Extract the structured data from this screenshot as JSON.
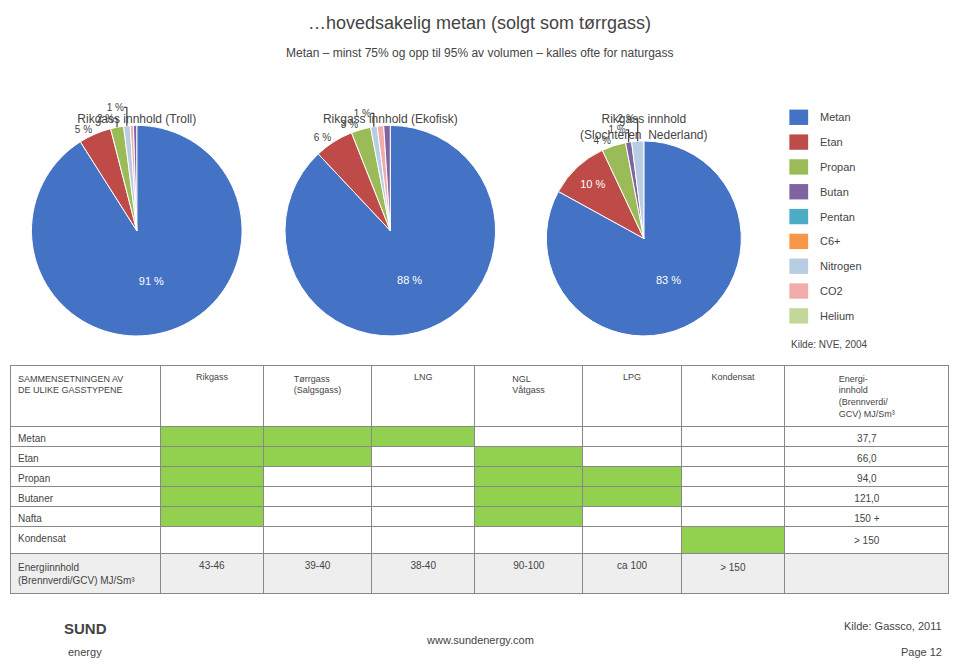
{
  "title": "…hovedsakelig metan (solgt som tørrgass)",
  "subtitle": "Metan – minst 75% og opp til 95% av volumen – kalles ofte for naturgass",
  "legend_entries": [
    {
      "name": "Metan",
      "color": "#4472C4"
    },
    {
      "name": "Etan",
      "color": "#BE4B48"
    },
    {
      "name": "Propan",
      "color": "#9BBB59"
    },
    {
      "name": "Butan",
      "color": "#8064A2"
    },
    {
      "name": "Pentan",
      "color": "#4BACC6"
    },
    {
      "name": "C6+",
      "color": "#F79646"
    },
    {
      "name": "Nitrogen",
      "color": "#B8CCE4"
    },
    {
      "name": "CO2",
      "color": "#F2ABAB"
    },
    {
      "name": "Helium",
      "color": "#C4D79B"
    }
  ],
  "chart_data": [
    {
      "type": "pie",
      "title": "Rikgass innhold (Troll)",
      "categories": [
        "Metan",
        "Etan",
        "Propan",
        "Nitrogen",
        "CO2",
        "Butan"
      ],
      "values": [
        91,
        5,
        2,
        1,
        0.5,
        0.5
      ],
      "value_labels": [
        "91 %",
        "5 %",
        "2 %",
        "1 %",
        null,
        null
      ],
      "colors": [
        "#4472C4",
        "#BE4B48",
        "#9BBB59",
        "#B8CCE4",
        "#F2ABAB",
        "#8064A2"
      ]
    },
    {
      "type": "pie",
      "title": "Rikgass innhold (Ekofisk)",
      "categories": [
        "Metan",
        "Etan",
        "Propan",
        "Nitrogen",
        "CO2",
        "Butan"
      ],
      "values": [
        88,
        6,
        3,
        1,
        1,
        1
      ],
      "value_labels": [
        "88 %",
        "6 %",
        "3 %",
        "1 %",
        null,
        null
      ],
      "colors": [
        "#4472C4",
        "#BE4B48",
        "#9BBB59",
        "#B8CCE4",
        "#F2ABAB",
        "#8064A2"
      ]
    },
    {
      "type": "pie",
      "title": "Rikgass innhold\n(Slochteren  Nederland)",
      "categories": [
        "Metan",
        "Etan",
        "Propan",
        "Butan",
        "Nitrogen"
      ],
      "values": [
        83,
        10,
        4,
        1,
        2
      ],
      "value_labels": [
        "83 %",
        "10 %",
        "4 %",
        "1 %",
        "2 %"
      ],
      "colors": [
        "#4472C4",
        "#BE4B48",
        "#9BBB59",
        "#8064A2",
        "#B8CCE4"
      ]
    },
    {
      "type": "table",
      "title": "SAMMENSETNINGEN AV\nDE ULIKE GASSTYPENE",
      "columns": [
        "Rikgass",
        "Tørrgass\n(Salgsgass)",
        "LNG",
        "NGL\nVåtgass",
        "LPG",
        "Kondensat",
        "Energi-\ninnhold\n(Brennverdi/\nGCV) MJ/Sm³"
      ],
      "rows": [
        {
          "name": "Metan",
          "bars": [
            1,
            1,
            1,
            0,
            0,
            0
          ],
          "value": "37,7"
        },
        {
          "name": "Etan",
          "bars": [
            1,
            1,
            0,
            1,
            0,
            0
          ],
          "value": "66,0"
        },
        {
          "name": "Propan",
          "bars": [
            1,
            0,
            0,
            1,
            1,
            0
          ],
          "value": "94,0"
        },
        {
          "name": "Butaner",
          "bars": [
            1,
            0,
            0,
            1,
            1,
            0
          ],
          "value": "121,0"
        },
        {
          "name": "Nafta",
          "bars": [
            1,
            0,
            0,
            1,
            0,
            0
          ],
          "value": "150 +"
        },
        {
          "name": "Kondensat",
          "bars": [
            0,
            0,
            0,
            0,
            0,
            1
          ],
          "value": "> 150"
        }
      ],
      "footer_label": "Energiinnhold\n(Brennverdi/GCV) MJ/Sm³",
      "footer": [
        "43-46",
        "39-40",
        "38-40",
        "90-100",
        "ca 100",
        "> 150"
      ],
      "color": "#92D050"
    }
  ],
  "source_pie": "Kilde: NVE, 2004",
  "source_table": "Kilde: Gassco, 2011",
  "website": "www.sundenergy.com",
  "page": "Page 12",
  "logo": [
    "SUND",
    "energy"
  ]
}
